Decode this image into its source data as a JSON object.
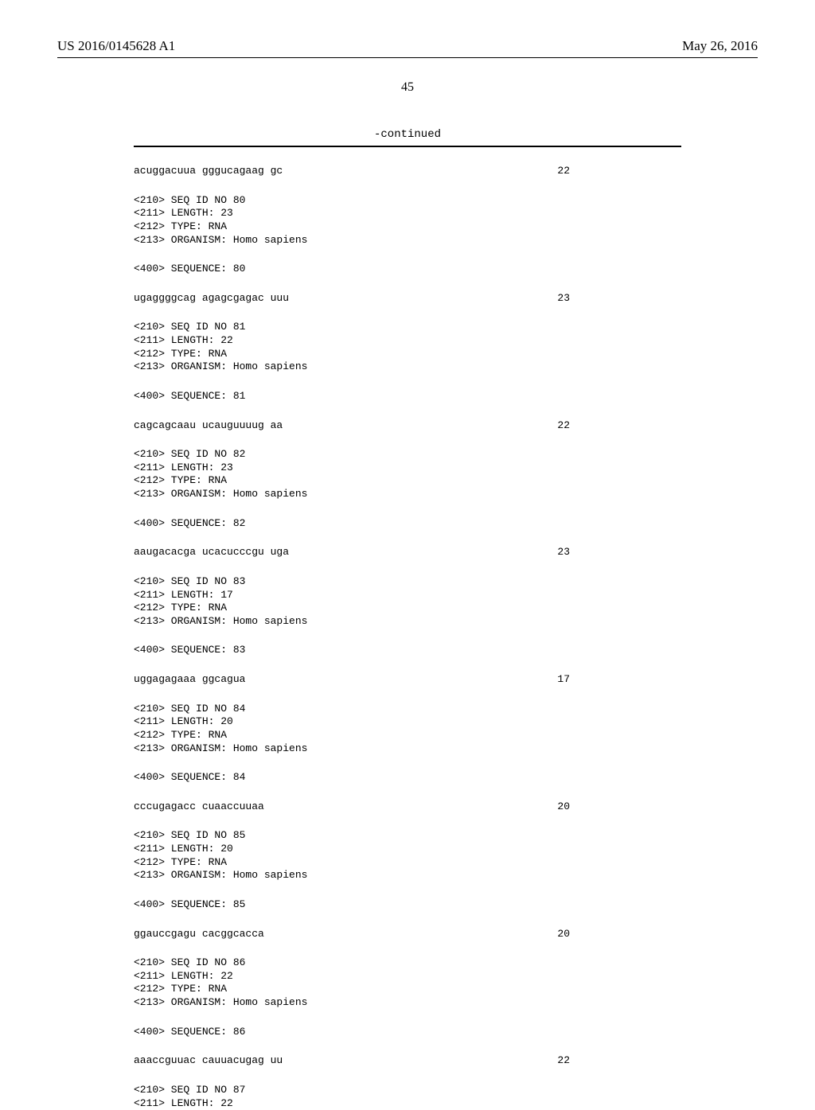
{
  "header": {
    "left": "US 2016/0145628 A1",
    "right": "May 26, 2016"
  },
  "pageNumber": "45",
  "continued": "-continued",
  "blocks": [
    {
      "type": "row",
      "text": "acuggacuua gggucagaag gc",
      "num": "22"
    },
    {
      "type": "meta",
      "lines": [
        "<210> SEQ ID NO 80",
        "<211> LENGTH: 23",
        "<212> TYPE: RNA",
        "<213> ORGANISM: Homo sapiens"
      ]
    },
    {
      "type": "line",
      "text": "<400> SEQUENCE: 80"
    },
    {
      "type": "row",
      "text": "ugaggggcag agagcgagac uuu",
      "num": "23"
    },
    {
      "type": "meta",
      "lines": [
        "<210> SEQ ID NO 81",
        "<211> LENGTH: 22",
        "<212> TYPE: RNA",
        "<213> ORGANISM: Homo sapiens"
      ]
    },
    {
      "type": "line",
      "text": "<400> SEQUENCE: 81"
    },
    {
      "type": "row",
      "text": "cagcagcaau ucauguuuug aa",
      "num": "22"
    },
    {
      "type": "meta",
      "lines": [
        "<210> SEQ ID NO 82",
        "<211> LENGTH: 23",
        "<212> TYPE: RNA",
        "<213> ORGANISM: Homo sapiens"
      ]
    },
    {
      "type": "line",
      "text": "<400> SEQUENCE: 82"
    },
    {
      "type": "row",
      "text": "aaugacacga ucacucccgu uga",
      "num": "23"
    },
    {
      "type": "meta",
      "lines": [
        "<210> SEQ ID NO 83",
        "<211> LENGTH: 17",
        "<212> TYPE: RNA",
        "<213> ORGANISM: Homo sapiens"
      ]
    },
    {
      "type": "line",
      "text": "<400> SEQUENCE: 83"
    },
    {
      "type": "row",
      "text": "uggagagaaa ggcagua",
      "num": "17"
    },
    {
      "type": "meta",
      "lines": [
        "<210> SEQ ID NO 84",
        "<211> LENGTH: 20",
        "<212> TYPE: RNA",
        "<213> ORGANISM: Homo sapiens"
      ]
    },
    {
      "type": "line",
      "text": "<400> SEQUENCE: 84"
    },
    {
      "type": "row",
      "text": "cccugagacc cuaaccuuaa",
      "num": "20"
    },
    {
      "type": "meta",
      "lines": [
        "<210> SEQ ID NO 85",
        "<211> LENGTH: 20",
        "<212> TYPE: RNA",
        "<213> ORGANISM: Homo sapiens"
      ]
    },
    {
      "type": "line",
      "text": "<400> SEQUENCE: 85"
    },
    {
      "type": "row",
      "text": "ggauccgagu cacggcacca",
      "num": "20"
    },
    {
      "type": "meta",
      "lines": [
        "<210> SEQ ID NO 86",
        "<211> LENGTH: 22",
        "<212> TYPE: RNA",
        "<213> ORGANISM: Homo sapiens"
      ]
    },
    {
      "type": "line",
      "text": "<400> SEQUENCE: 86"
    },
    {
      "type": "row",
      "text": "aaaccguuac cauuacugag uu",
      "num": "22"
    },
    {
      "type": "meta-final",
      "lines": [
        "<210> SEQ ID NO 87",
        "<211> LENGTH: 22"
      ]
    }
  ]
}
